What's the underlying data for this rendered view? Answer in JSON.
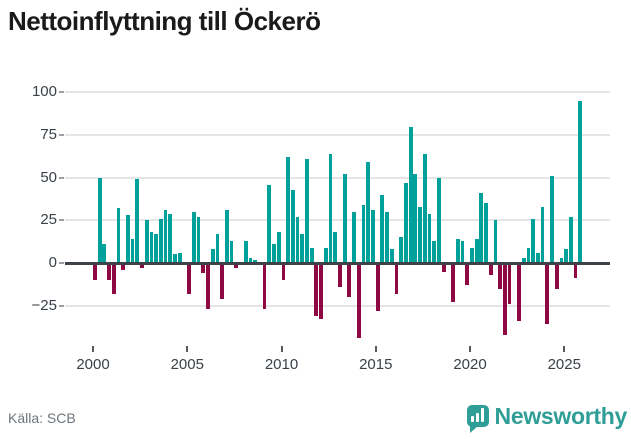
{
  "title": "Nettoinflyttning till Öckerö",
  "footer": {
    "source_label": "Källa: SCB",
    "brand": "Newsworthy"
  },
  "colors": {
    "positive": "#00a09b",
    "negative": "#8e0844",
    "axis": "#3d4349",
    "grid": "#e5e5e5",
    "title_text": "#1a1a1a",
    "tick_text": "#3a4148",
    "source_text": "#6e757c",
    "brand_teal": "#2f9e96"
  },
  "chart_data": {
    "type": "bar",
    "title": "Nettoinflyttning till Öckerö",
    "frequency": "quarterly",
    "x_start": "2000 Q1",
    "x_end": "2025 Q4",
    "grid": true,
    "legend": null,
    "y_axis": {
      "ticks": [
        100,
        75,
        50,
        25,
        0,
        -25
      ],
      "range": [
        -48,
        107
      ]
    },
    "x_axis": {
      "ticks": [
        2000,
        2005,
        2010,
        2015,
        2020,
        2025
      ]
    },
    "values_by_year": [
      {
        "year": 2000,
        "q": [
          -10,
          50,
          11,
          -10
        ]
      },
      {
        "year": 2001,
        "q": [
          -18,
          32,
          -4,
          28
        ]
      },
      {
        "year": 2002,
        "q": [
          14,
          49,
          -3,
          25
        ]
      },
      {
        "year": 2003,
        "q": [
          18,
          17,
          26,
          31
        ]
      },
      {
        "year": 2004,
        "q": [
          29,
          5,
          6,
          0
        ]
      },
      {
        "year": 2005,
        "q": [
          -18,
          30,
          27,
          -6
        ]
      },
      {
        "year": 2006,
        "q": [
          -27,
          8,
          17,
          -21
        ]
      },
      {
        "year": 2007,
        "q": [
          31,
          13,
          -3,
          0
        ]
      },
      {
        "year": 2008,
        "q": [
          13,
          3,
          2,
          0
        ]
      },
      {
        "year": 2009,
        "q": [
          -27,
          46,
          11,
          18
        ]
      },
      {
        "year": 2010,
        "q": [
          -10,
          62,
          43,
          27
        ]
      },
      {
        "year": 2011,
        "q": [
          17,
          61,
          9,
          -31
        ]
      },
      {
        "year": 2012,
        "q": [
          -33,
          9,
          64,
          18
        ]
      },
      {
        "year": 2013,
        "q": [
          -14,
          52,
          -20,
          30
        ]
      },
      {
        "year": 2014,
        "q": [
          -44,
          34,
          59,
          31
        ]
      },
      {
        "year": 2015,
        "q": [
          -28,
          40,
          30,
          8
        ]
      },
      {
        "year": 2016,
        "q": [
          -18,
          15,
          47,
          80
        ]
      },
      {
        "year": 2017,
        "q": [
          52,
          33,
          64,
          29
        ]
      },
      {
        "year": 2018,
        "q": [
          13,
          50,
          -5,
          0
        ]
      },
      {
        "year": 2019,
        "q": [
          -23,
          14,
          13,
          -13
        ]
      },
      {
        "year": 2020,
        "q": [
          9,
          14,
          41,
          35
        ]
      },
      {
        "year": 2021,
        "q": [
          -7,
          25,
          -15,
          -42
        ]
      },
      {
        "year": 2022,
        "q": [
          -24,
          0,
          -34,
          3
        ]
      },
      {
        "year": 2023,
        "q": [
          9,
          26,
          6,
          33
        ]
      },
      {
        "year": 2024,
        "q": [
          -36,
          51,
          -15,
          3
        ]
      },
      {
        "year": 2025,
        "q": [
          8,
          27,
          -9,
          95
        ]
      }
    ]
  }
}
